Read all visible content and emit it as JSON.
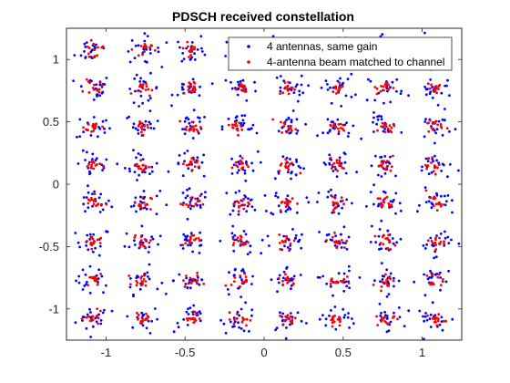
{
  "chart_data": {
    "type": "scatter",
    "title": "PDSCH received constellation",
    "xlabel": "",
    "ylabel": "",
    "xlim": [
      -1.25,
      1.25
    ],
    "ylim": [
      -1.25,
      1.25
    ],
    "xticks": [
      -1,
      -0.5,
      0,
      0.5,
      1
    ],
    "xtick_labels": [
      "-1",
      "-0.5",
      "0",
      "0.5",
      "1"
    ],
    "yticks": [
      -1,
      -0.5,
      0,
      0.5,
      1
    ],
    "ytick_labels": [
      "-1",
      "-0.5",
      "0",
      "0.5",
      "1"
    ],
    "grid": false,
    "legend_position": "top-right",
    "constellation": "64-QAM",
    "ideal_points_axis_values": [
      -1.08,
      -0.77,
      -0.46,
      -0.15,
      0.15,
      0.46,
      0.77,
      1.08
    ],
    "series": [
      {
        "name": "4 antennas, same gain",
        "color": "#0000ff",
        "marker": "dot",
        "spread_std": 0.055,
        "points_per_symbol": 20
      },
      {
        "name": "4-antenna beam matched to channel",
        "color": "#ff0000",
        "marker": "dot",
        "spread_std": 0.028,
        "points_per_symbol": 14
      }
    ]
  }
}
